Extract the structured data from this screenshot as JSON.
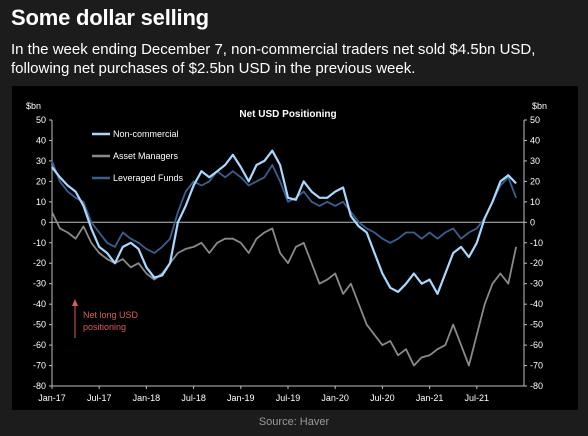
{
  "headline": "Some dollar selling",
  "subtitle": "In the week ending December 7, non-commercial traders net sold $4.5bn USD, following net purchases of $2.5bn USD in the previous week.",
  "source": "Source: Haver",
  "colors": {
    "page_background": "#1c1c1c",
    "chart_background": "#000000",
    "non_commercial": "#a9d8ff",
    "asset_managers": "#8a8a8a",
    "leveraged_funds": "#3a5f8c",
    "annotation": "#d95c5c"
  },
  "chart_data": {
    "type": "line",
    "title": "Net USD Positioning",
    "ylabel_left": "$bn",
    "ylabel_right": "$bn",
    "ylim": [
      -80,
      50
    ],
    "yticks": [
      50,
      40,
      30,
      20,
      10,
      0,
      -10,
      -20,
      -30,
      -40,
      -50,
      -60,
      -70,
      -80
    ],
    "xlim": [
      "2017-01",
      "2022-01"
    ],
    "xticks": [
      {
        "label": "Jan-17",
        "x": "2017-01"
      },
      {
        "label": "Jul-17",
        "x": "2017-07"
      },
      {
        "label": "Jan-18",
        "x": "2018-01"
      },
      {
        "label": "Jul-18",
        "x": "2018-07"
      },
      {
        "label": "Jan-19",
        "x": "2019-01"
      },
      {
        "label": "Jul-19",
        "x": "2019-07"
      },
      {
        "label": "Jan-20",
        "x": "2020-01"
      },
      {
        "label": "Jul-20",
        "x": "2020-07"
      },
      {
        "label": "Jan-21",
        "x": "2021-01"
      },
      {
        "label": "Jul-21",
        "x": "2021-07"
      }
    ],
    "grid": false,
    "zero_line": true,
    "legend": "top-left",
    "annotation": {
      "text": [
        "Net long USD",
        "positioning"
      ],
      "arrow": "up",
      "position": "bottom-left"
    },
    "series": [
      {
        "name": "Non-commercial",
        "color": "#a9d8ff",
        "points": [
          [
            "2017-01",
            27
          ],
          [
            "2017-02",
            22
          ],
          [
            "2017-03",
            18
          ],
          [
            "2017-04",
            15
          ],
          [
            "2017-05",
            8
          ],
          [
            "2017-06",
            -3
          ],
          [
            "2017-07",
            -12
          ],
          [
            "2017-08",
            -15
          ],
          [
            "2017-09",
            -20
          ],
          [
            "2017-10",
            -12
          ],
          [
            "2017-11",
            -10
          ],
          [
            "2017-12",
            -13
          ],
          [
            "2018-01",
            -22
          ],
          [
            "2018-02",
            -27
          ],
          [
            "2018-03",
            -26
          ],
          [
            "2018-04",
            -20
          ],
          [
            "2018-05",
            0
          ],
          [
            "2018-06",
            8
          ],
          [
            "2018-07",
            18
          ],
          [
            "2018-08",
            25
          ],
          [
            "2018-09",
            22
          ],
          [
            "2018-10",
            25
          ],
          [
            "2018-11",
            28
          ],
          [
            "2018-12",
            33
          ],
          [
            "2019-01",
            27
          ],
          [
            "2019-02",
            20
          ],
          [
            "2019-03",
            28
          ],
          [
            "2019-04",
            30
          ],
          [
            "2019-05",
            35
          ],
          [
            "2019-06",
            28
          ],
          [
            "2019-07",
            12
          ],
          [
            "2019-08",
            11
          ],
          [
            "2019-09",
            20
          ],
          [
            "2019-10",
            15
          ],
          [
            "2019-11",
            12
          ],
          [
            "2019-12",
            12
          ],
          [
            "2020-01",
            15
          ],
          [
            "2020-02",
            17
          ],
          [
            "2020-03",
            3
          ],
          [
            "2020-04",
            -2
          ],
          [
            "2020-05",
            -5
          ],
          [
            "2020-06",
            -15
          ],
          [
            "2020-07",
            -25
          ],
          [
            "2020-08",
            -32
          ],
          [
            "2020-09",
            -34
          ],
          [
            "2020-10",
            -30
          ],
          [
            "2020-11",
            -25
          ],
          [
            "2020-12",
            -30
          ],
          [
            "2021-01",
            -28
          ],
          [
            "2021-02",
            -35
          ],
          [
            "2021-03",
            -25
          ],
          [
            "2021-04",
            -15
          ],
          [
            "2021-05",
            -12
          ],
          [
            "2021-06",
            -17
          ],
          [
            "2021-07",
            -10
          ],
          [
            "2021-08",
            2
          ],
          [
            "2021-09",
            10
          ],
          [
            "2021-10",
            20
          ],
          [
            "2021-11",
            23
          ],
          [
            "2021-12",
            19
          ]
        ]
      },
      {
        "name": "Asset Managers",
        "color": "#8a8a8a",
        "points": [
          [
            "2017-01",
            5
          ],
          [
            "2017-02",
            -3
          ],
          [
            "2017-03",
            -5
          ],
          [
            "2017-04",
            -8
          ],
          [
            "2017-05",
            -2
          ],
          [
            "2017-06",
            -10
          ],
          [
            "2017-07",
            -15
          ],
          [
            "2017-08",
            -18
          ],
          [
            "2017-09",
            -20
          ],
          [
            "2017-10",
            -18
          ],
          [
            "2017-11",
            -22
          ],
          [
            "2017-12",
            -20
          ],
          [
            "2018-01",
            -25
          ],
          [
            "2018-02",
            -28
          ],
          [
            "2018-03",
            -25
          ],
          [
            "2018-04",
            -20
          ],
          [
            "2018-05",
            -15
          ],
          [
            "2018-06",
            -13
          ],
          [
            "2018-07",
            -12
          ],
          [
            "2018-08",
            -10
          ],
          [
            "2018-09",
            -15
          ],
          [
            "2018-10",
            -10
          ],
          [
            "2018-11",
            -8
          ],
          [
            "2018-12",
            -8
          ],
          [
            "2019-01",
            -10
          ],
          [
            "2019-02",
            -15
          ],
          [
            "2019-03",
            -8
          ],
          [
            "2019-04",
            -5
          ],
          [
            "2019-05",
            -3
          ],
          [
            "2019-06",
            -15
          ],
          [
            "2019-07",
            -20
          ],
          [
            "2019-08",
            -12
          ],
          [
            "2019-09",
            -10
          ],
          [
            "2019-10",
            -20
          ],
          [
            "2019-11",
            -30
          ],
          [
            "2019-12",
            -28
          ],
          [
            "2020-01",
            -25
          ],
          [
            "2020-02",
            -35
          ],
          [
            "2020-03",
            -30
          ],
          [
            "2020-04",
            -40
          ],
          [
            "2020-05",
            -50
          ],
          [
            "2020-06",
            -55
          ],
          [
            "2020-07",
            -60
          ],
          [
            "2020-08",
            -58
          ],
          [
            "2020-09",
            -65
          ],
          [
            "2020-10",
            -62
          ],
          [
            "2020-11",
            -70
          ],
          [
            "2020-12",
            -66
          ],
          [
            "2021-01",
            -65
          ],
          [
            "2021-02",
            -62
          ],
          [
            "2021-03",
            -60
          ],
          [
            "2021-04",
            -50
          ],
          [
            "2021-05",
            -60
          ],
          [
            "2021-06",
            -70
          ],
          [
            "2021-07",
            -55
          ],
          [
            "2021-08",
            -40
          ],
          [
            "2021-09",
            -30
          ],
          [
            "2021-10",
            -25
          ],
          [
            "2021-11",
            -30
          ],
          [
            "2021-12",
            -12
          ]
        ]
      },
      {
        "name": "Leveraged Funds",
        "color": "#3a5f8c",
        "points": [
          [
            "2017-01",
            30
          ],
          [
            "2017-02",
            20
          ],
          [
            "2017-03",
            15
          ],
          [
            "2017-04",
            12
          ],
          [
            "2017-05",
            10
          ],
          [
            "2017-06",
            0
          ],
          [
            "2017-07",
            -5
          ],
          [
            "2017-08",
            -10
          ],
          [
            "2017-09",
            -12
          ],
          [
            "2017-10",
            -5
          ],
          [
            "2017-11",
            -8
          ],
          [
            "2017-12",
            -10
          ],
          [
            "2018-01",
            -13
          ],
          [
            "2018-02",
            -15
          ],
          [
            "2018-03",
            -12
          ],
          [
            "2018-04",
            -8
          ],
          [
            "2018-05",
            5
          ],
          [
            "2018-06",
            15
          ],
          [
            "2018-07",
            20
          ],
          [
            "2018-08",
            18
          ],
          [
            "2018-09",
            20
          ],
          [
            "2018-10",
            25
          ],
          [
            "2018-11",
            22
          ],
          [
            "2018-12",
            25
          ],
          [
            "2019-01",
            22
          ],
          [
            "2019-02",
            18
          ],
          [
            "2019-03",
            20
          ],
          [
            "2019-04",
            22
          ],
          [
            "2019-05",
            28
          ],
          [
            "2019-06",
            20
          ],
          [
            "2019-07",
            10
          ],
          [
            "2019-08",
            12
          ],
          [
            "2019-09",
            15
          ],
          [
            "2019-10",
            10
          ],
          [
            "2019-11",
            8
          ],
          [
            "2019-12",
            10
          ],
          [
            "2020-01",
            8
          ],
          [
            "2020-02",
            10
          ],
          [
            "2020-03",
            5
          ],
          [
            "2020-04",
            0
          ],
          [
            "2020-05",
            -3
          ],
          [
            "2020-06",
            -5
          ],
          [
            "2020-07",
            -8
          ],
          [
            "2020-08",
            -10
          ],
          [
            "2020-09",
            -8
          ],
          [
            "2020-10",
            -5
          ],
          [
            "2020-11",
            -5
          ],
          [
            "2020-12",
            -8
          ],
          [
            "2021-01",
            -5
          ],
          [
            "2021-02",
            -8
          ],
          [
            "2021-03",
            -5
          ],
          [
            "2021-04",
            -3
          ],
          [
            "2021-05",
            -8
          ],
          [
            "2021-06",
            -5
          ],
          [
            "2021-07",
            -3
          ],
          [
            "2021-08",
            2
          ],
          [
            "2021-09",
            10
          ],
          [
            "2021-10",
            18
          ],
          [
            "2021-11",
            22
          ],
          [
            "2021-12",
            12
          ]
        ]
      }
    ]
  }
}
